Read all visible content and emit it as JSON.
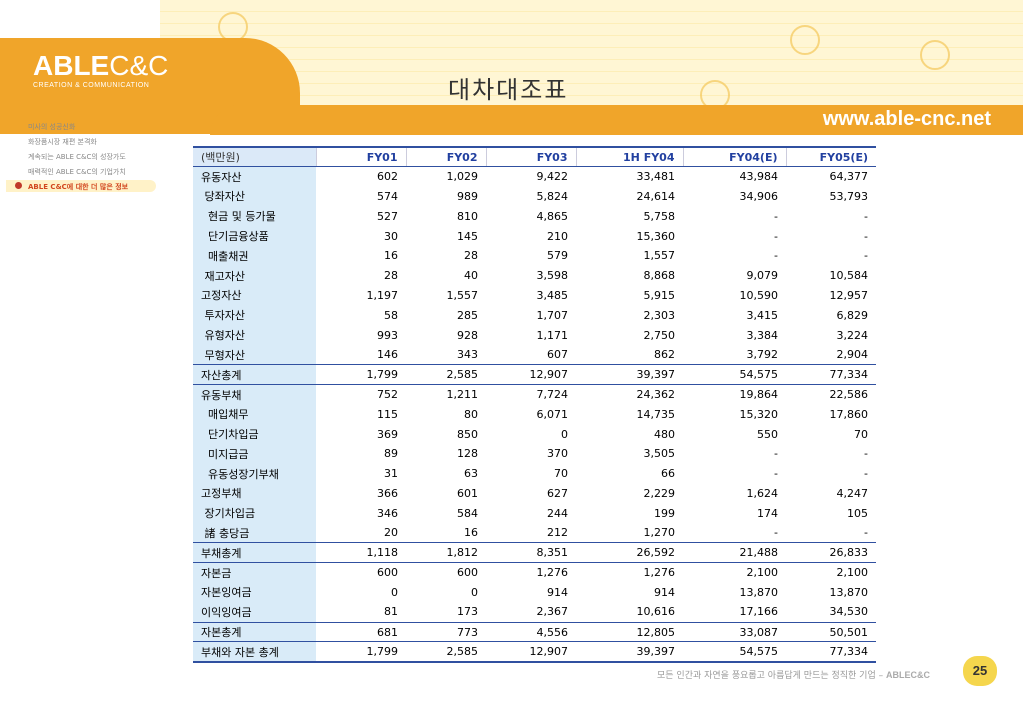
{
  "header": {
    "logo_bold": "ABLE",
    "logo_thin": "C&C",
    "logo_sub": "CREATION & COMMUNICATION",
    "site": "www.able-cnc.net",
    "title": "대차대조표"
  },
  "sidebar": {
    "items": [
      {
        "label": "미사의 성공신화"
      },
      {
        "label": "화장품시장 재편 본격화"
      },
      {
        "label": "계속되는 ABLE C&C의 성장가도"
      },
      {
        "label": "매력적인 ABLE C&C의 기업가치"
      },
      {
        "label": "ABLE C&C에 대한 더 많은 정보"
      }
    ]
  },
  "table": {
    "headers": [
      "(백만원)",
      "FY01",
      "FY02",
      "FY03",
      "1H FY04",
      "FY04(E)",
      "FY05(E)"
    ],
    "rows": [
      {
        "label": "유동자산",
        "values": [
          "602",
          "1,029",
          "9,422",
          "33,481",
          "43,984",
          "64,377"
        ]
      },
      {
        "label": " 당좌자산",
        "values": [
          "574",
          "989",
          "5,824",
          "24,614",
          "34,906",
          "53,793"
        ]
      },
      {
        "label": "  현금 및 등가물",
        "values": [
          "527",
          "810",
          "4,865",
          "5,758",
          "-",
          "-"
        ]
      },
      {
        "label": "  단기금융상품",
        "values": [
          "30",
          "145",
          "210",
          "15,360",
          "-",
          "-"
        ]
      },
      {
        "label": "  매출채권",
        "values": [
          "16",
          "28",
          "579",
          "1,557",
          "-",
          "-"
        ]
      },
      {
        "label": " 재고자산",
        "values": [
          "28",
          "40",
          "3,598",
          "8,868",
          "9,079",
          "10,584"
        ]
      },
      {
        "label": "고정자산",
        "values": [
          "1,197",
          "1,557",
          "3,485",
          "5,915",
          "10,590",
          "12,957"
        ]
      },
      {
        "label": " 투자자산",
        "values": [
          "58",
          "285",
          "1,707",
          "2,303",
          "3,415",
          "6,829"
        ]
      },
      {
        "label": " 유형자산",
        "values": [
          "993",
          "928",
          "1,171",
          "2,750",
          "3,384",
          "3,224"
        ]
      },
      {
        "label": " 무형자산",
        "values": [
          "146",
          "343",
          "607",
          "862",
          "3,792",
          "2,904"
        ]
      },
      {
        "label": "자산총계",
        "values": [
          "1,799",
          "2,585",
          "12,907",
          "39,397",
          "54,575",
          "77,334"
        ]
      },
      {
        "label": "유동부채",
        "values": [
          "752",
          "1,211",
          "7,724",
          "24,362",
          "19,864",
          "22,586"
        ]
      },
      {
        "label": "  매입채무",
        "values": [
          "115",
          "80",
          "6,071",
          "14,735",
          "15,320",
          "17,860"
        ]
      },
      {
        "label": "  단기차입금",
        "values": [
          "369",
          "850",
          "0",
          "480",
          "550",
          "70"
        ]
      },
      {
        "label": "  미지급금",
        "values": [
          "89",
          "128",
          "370",
          "3,505",
          "-",
          "-"
        ]
      },
      {
        "label": "  유동성장기부채",
        "values": [
          "31",
          "63",
          "70",
          "66",
          "-",
          "-"
        ]
      },
      {
        "label": "고정부채",
        "values": [
          "366",
          "601",
          "627",
          "2,229",
          "1,624",
          "4,247"
        ]
      },
      {
        "label": " 장기차입금",
        "values": [
          "346",
          "584",
          "244",
          "199",
          "174",
          "105"
        ]
      },
      {
        "label": " 諸 충당금",
        "values": [
          "20",
          "16",
          "212",
          "1,270",
          "-",
          "-"
        ]
      },
      {
        "label": "부채총계",
        "values": [
          "1,118",
          "1,812",
          "8,351",
          "26,592",
          "21,488",
          "26,833"
        ]
      },
      {
        "label": "자본금",
        "values": [
          "600",
          "600",
          "1,276",
          "1,276",
          "2,100",
          "2,100"
        ]
      },
      {
        "label": "자본잉여금",
        "values": [
          "0",
          "0",
          "914",
          "914",
          "13,870",
          "13,870"
        ]
      },
      {
        "label": "이익잉여금",
        "values": [
          "81",
          "173",
          "2,367",
          "10,616",
          "17,166",
          "34,530"
        ]
      },
      {
        "label": "자본총계",
        "values": [
          "681",
          "773",
          "4,556",
          "12,805",
          "33,087",
          "50,501"
        ]
      },
      {
        "label": "부채와 자본 총계",
        "values": [
          "1,799",
          "2,585",
          "12,907",
          "39,397",
          "54,575",
          "77,334"
        ]
      }
    ]
  },
  "footer": {
    "text": "모든 인간과 자연을 풍요롭고 아름답게 만드는 정직한 기업 –",
    "brand": "ABLEC&C",
    "page": "25"
  }
}
